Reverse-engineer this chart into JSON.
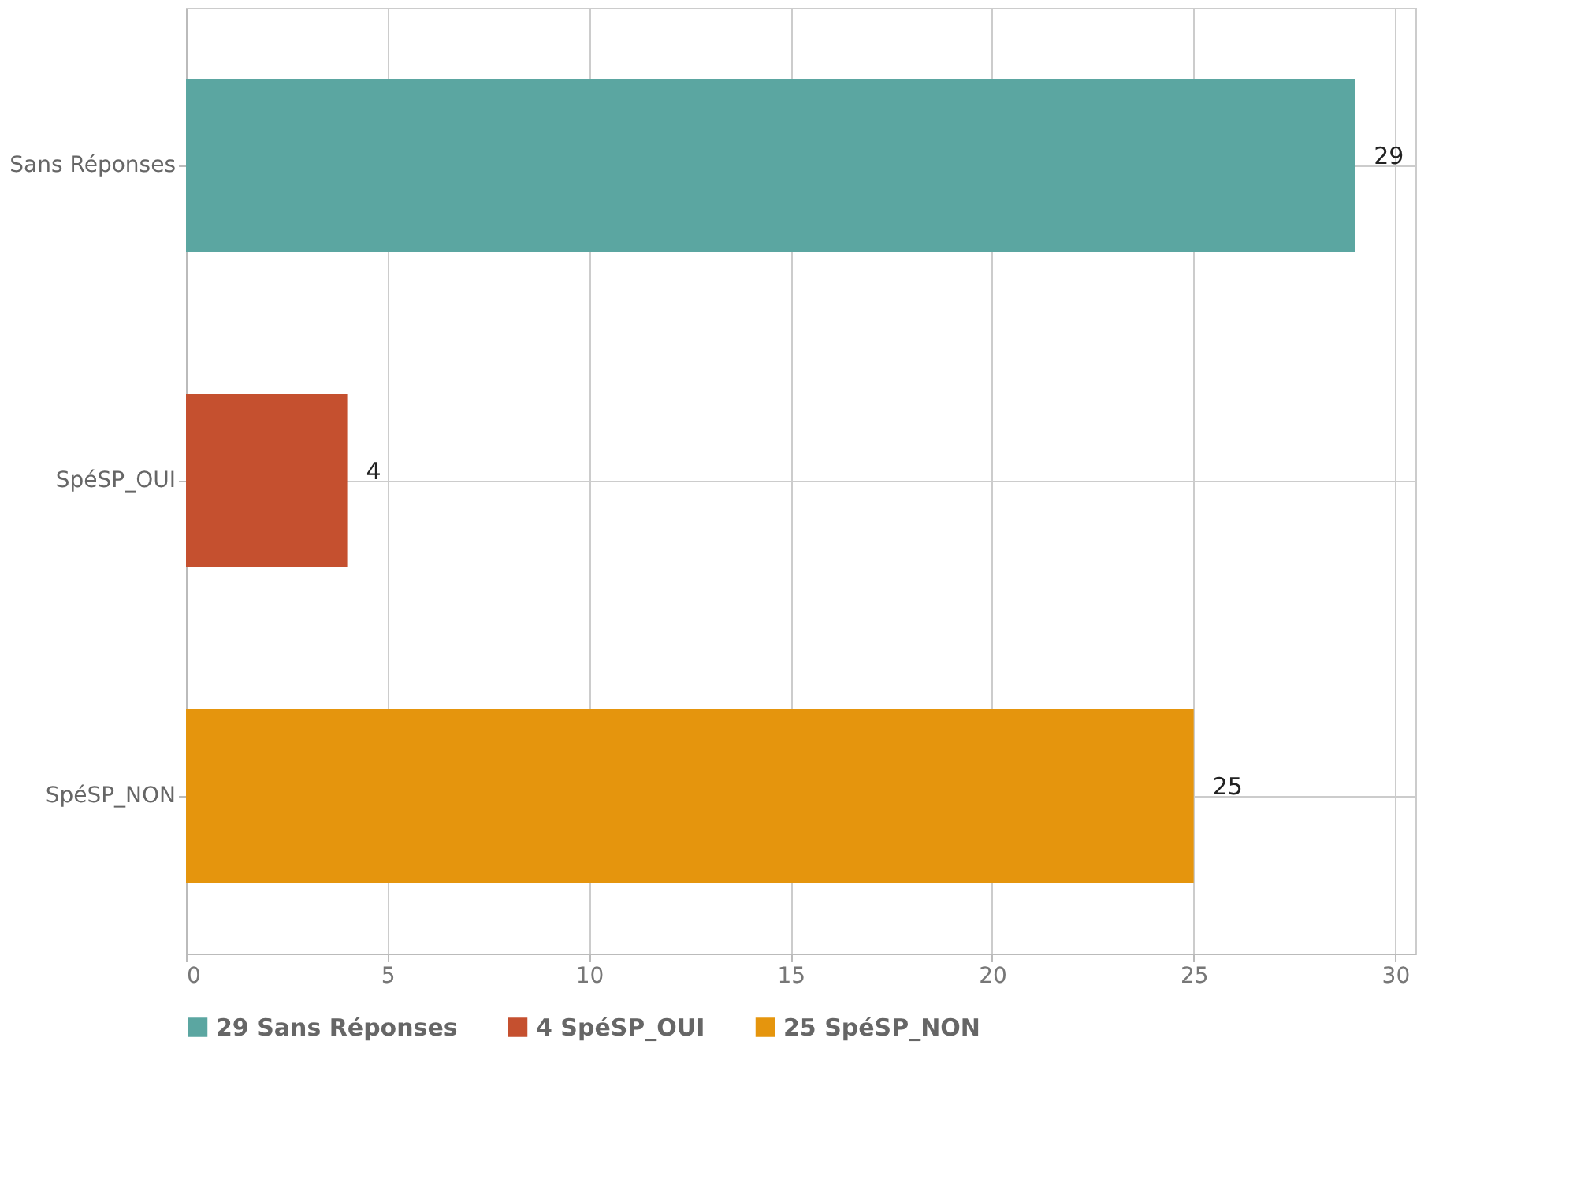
{
  "chart_data": {
    "type": "bar",
    "orientation": "horizontal",
    "categories": [
      "Sans Réponses",
      "SpéSP_OUI",
      "SpéSP_NON"
    ],
    "series": [
      {
        "name": "29 Sans Réponses",
        "color": "#5ba6a1",
        "values": [
          29,
          null,
          null
        ]
      },
      {
        "name": "4 SpéSP_OUI",
        "color": "#c5502f",
        "values": [
          null,
          4,
          null
        ]
      },
      {
        "name": "25 SpéSP_NON",
        "color": "#e5950d",
        "values": [
          null,
          null,
          25
        ]
      }
    ],
    "xlim": [
      0,
      30.5
    ],
    "xticks": [
      0,
      5,
      10,
      15,
      20,
      25,
      30
    ],
    "grid": true,
    "data_labels": true,
    "legend": "bottom"
  }
}
